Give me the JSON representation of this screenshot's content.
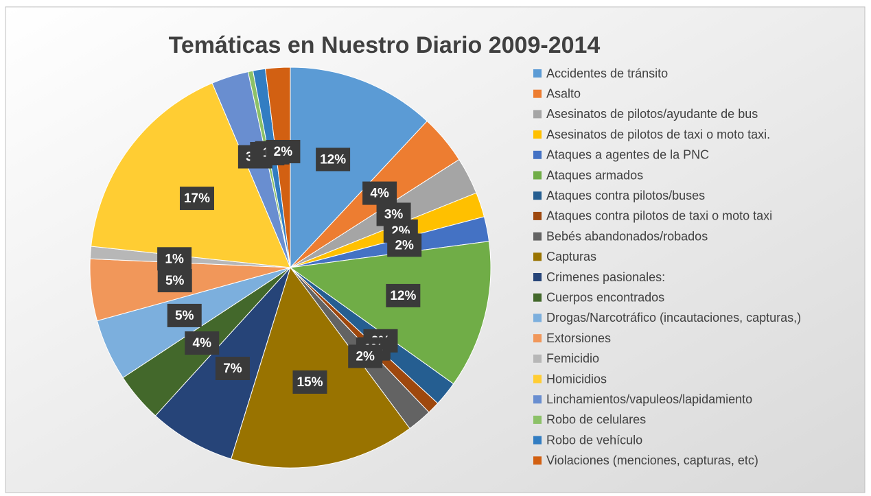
{
  "chart_data": {
    "type": "pie",
    "title": "Temáticas en Nuestro Diario 2009-2014",
    "categories": [
      "Accidentes de tránsito",
      "Asalto",
      "Asesinatos de pilotos/ayudante de bus",
      "Asesinatos de pilotos de taxi o moto taxi.",
      "Ataques a agentes de la PNC",
      "Ataques armados",
      "Ataques contra pilotos/buses",
      "Ataques contra pilotos de taxi o moto taxi",
      "Bebés abandonados/robados",
      "Capturas",
      "Crimenes pasionales:",
      "Cuerpos encontrados",
      "Drogas/Narcotráfico (incautaciones, capturas,)",
      "Extorsiones",
      "Femicidio",
      "Homicidios",
      "Linchamientos/vapuleos/lapidamiento",
      "Robo de celulares",
      "Robo de vehículo",
      "Violaciones (menciones, capturas, etc)"
    ],
    "values": [
      12,
      4,
      3,
      2,
      2,
      12,
      2,
      1,
      2,
      15,
      7,
      4,
      5,
      5,
      1,
      17,
      3,
      0.4,
      1,
      2
    ],
    "value_labels": [
      "12%",
      "4%",
      "3%",
      "2%",
      "2%",
      "12%",
      "2%",
      "1%",
      "2%",
      "15%",
      "7%",
      "4%",
      "5%",
      "5%",
      "1%",
      "17%",
      "3%",
      "0%",
      "1%",
      "2%"
    ],
    "colors": [
      "#5b9bd5",
      "#ed7d31",
      "#a5a5a5",
      "#ffc000",
      "#4472c4",
      "#70ad47",
      "#255e91",
      "#9e480e",
      "#636363",
      "#997300",
      "#264478",
      "#43682b",
      "#7cafdd",
      "#f1975a",
      "#b7b7b7",
      "#ffcd33",
      "#698ed0",
      "#8cc168",
      "#327dc2",
      "#d26012"
    ],
    "legend": "right"
  }
}
